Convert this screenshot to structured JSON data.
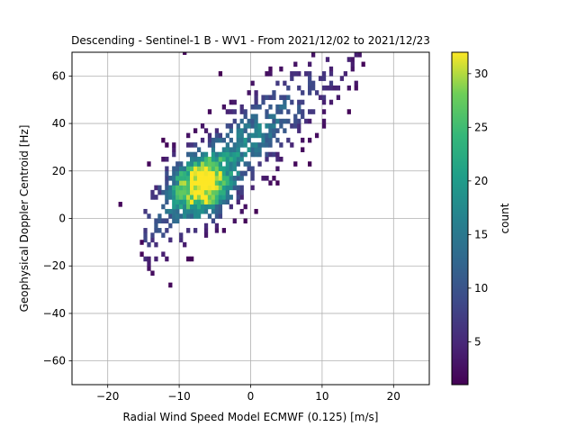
{
  "chart_data": {
    "type": "heatmap",
    "title": "Descending - Sentinel-1 B - WV1 - From 2021/12/02 to 2021/12/23",
    "xlabel": "Radial Wind Speed Model ECMWF (0.125) [m/s]",
    "ylabel": "Geophysical Doppler Centroid [Hz]",
    "xlim": [
      -25,
      25
    ],
    "ylim": [
      -70,
      70
    ],
    "xticks": [
      -20,
      -10,
      0,
      10,
      20
    ],
    "yticks": [
      -60,
      -40,
      -20,
      0,
      20,
      40,
      60
    ],
    "grid": true,
    "colormap": "viridis",
    "colorbar": {
      "label": "count",
      "range": [
        1,
        32
      ],
      "ticks": [
        5,
        10,
        15,
        20,
        25,
        30
      ]
    },
    "bin_width_x": 0.5,
    "bin_height_y": 2,
    "distribution": {
      "description": "2D histogram of counts; dense diagonal band rising from lower-left to upper-right",
      "peak": {
        "x": -7,
        "y": 14,
        "count": 32
      },
      "trend_slope_hz_per_ms": 2.55,
      "trend_intercept_hz": 33,
      "x_extent": [
        -15,
        16
      ],
      "y_extent": [
        -29,
        70
      ]
    },
    "colors": {
      "viridis_low": "#440154",
      "viridis_mid": "#21918c",
      "viridis_high": "#fde725"
    }
  }
}
